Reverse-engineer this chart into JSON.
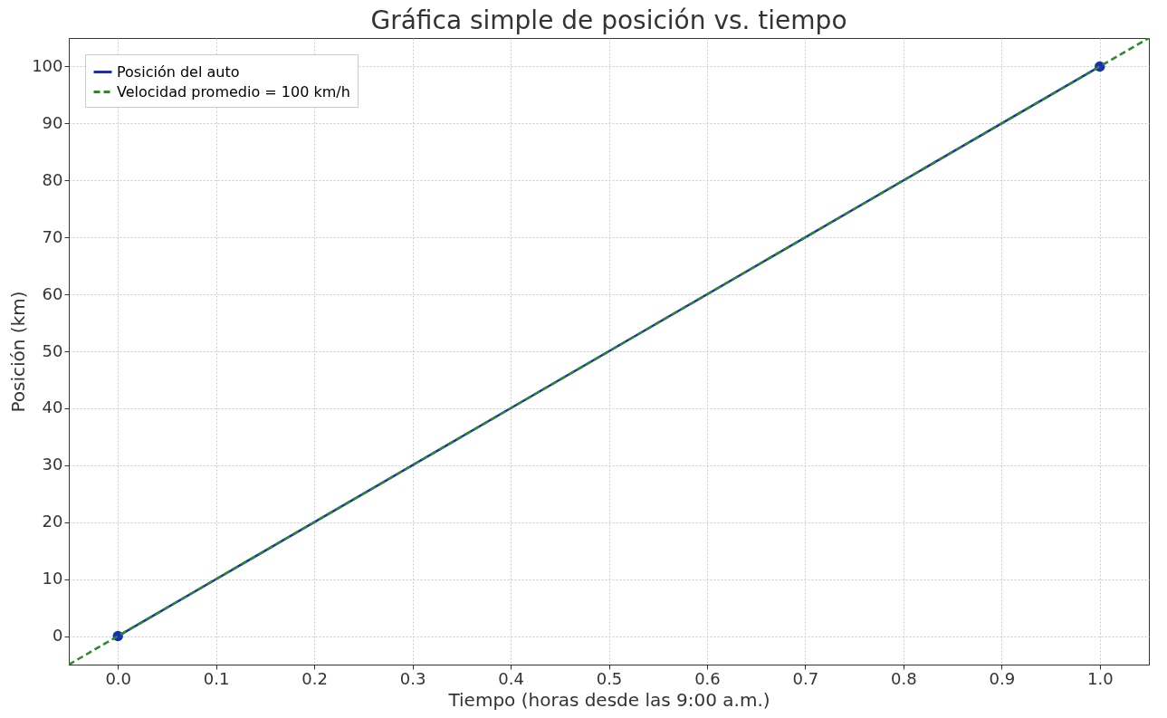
{
  "chart_data": {
    "type": "line",
    "title": "Gráfica simple de posición vs. tiempo",
    "xlabel": "Tiempo (horas desde las 9:00 a.m.)",
    "ylabel": "Posición (km)",
    "series": [
      {
        "name": "Posición del auto",
        "color": "#1a2db5",
        "x": [
          0,
          1
        ],
        "values": [
          0,
          100
        ],
        "marker": "circle",
        "line_style": "solid"
      },
      {
        "name": "Velocidad promedio = 100 km/h",
        "color": "#2a8a2a",
        "x": [
          -0.05,
          1.05
        ],
        "values": [
          -5,
          105
        ],
        "marker": "none",
        "line_style": "dashed"
      }
    ],
    "xlim": [
      -0.05,
      1.05
    ],
    "ylim": [
      -5,
      105
    ],
    "xticks": [
      {
        "value": 0,
        "label": "0.0"
      },
      0.1,
      0.2,
      0.3,
      0.4,
      0.5,
      0.6,
      0.7,
      0.8,
      0.9,
      {
        "value": 1,
        "label": "1.0"
      }
    ],
    "yticks": [
      0,
      10,
      20,
      30,
      40,
      50,
      60,
      70,
      80,
      90,
      100
    ],
    "grid": true,
    "legend": "top left"
  }
}
